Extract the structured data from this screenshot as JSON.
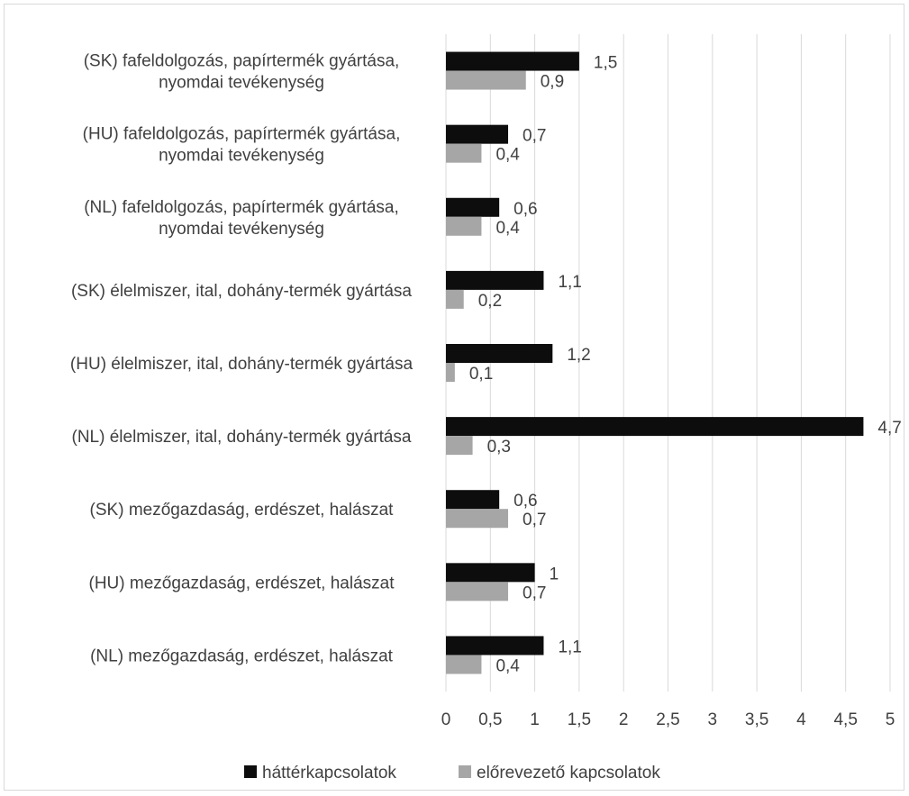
{
  "chart_data": {
    "type": "bar",
    "orientation": "horizontal",
    "title": "",
    "xlabel": "",
    "ylabel": "",
    "categories": [
      "(SK) fafeldolgozás, papírtermék gyártása, nyomdai tevékenység",
      "(HU) fafeldolgozás, papírtermék gyártása, nyomdai tevékenység",
      "(NL) fafeldolgozás, papírtermék gyártása, nyomdai tevékenység",
      "(SK) élelmiszer, ital, dohány-termék gyártása",
      "(HU) élelmiszer, ital, dohány-termék gyártása",
      "(NL) élelmiszer, ital, dohány-termék gyártása",
      "(SK) mezőgazdaság, erdészet, halászat",
      "(HU) mezőgazdaság, erdészet, halászat",
      "(NL) mezőgazdaság, erdészet, halászat"
    ],
    "category_lines": [
      [
        "(SK) fafeldolgozás, papírtermék gyártása,",
        "nyomdai tevékenység"
      ],
      [
        "(HU) fafeldolgozás, papírtermék gyártása,",
        "nyomdai tevékenység"
      ],
      [
        "(NL) fafeldolgozás, papírtermék gyártása,",
        "nyomdai tevékenység"
      ],
      [
        "(SK) élelmiszer, ital, dohány-termék gyártása"
      ],
      [
        "(HU) élelmiszer, ital, dohány-termék gyártása"
      ],
      [
        "(NL) élelmiszer, ital, dohány-termék gyártása"
      ],
      [
        "(SK) mezőgazdaság, erdészet, halászat"
      ],
      [
        "(HU) mezőgazdaság, erdészet, halászat"
      ],
      [
        "(NL) mezőgazdaság, erdészet, halászat"
      ]
    ],
    "series": [
      {
        "name": "háttérkapcsolatok",
        "color": "#0d0d0d",
        "values": [
          1.5,
          0.7,
          0.6,
          1.1,
          1.2,
          4.7,
          0.6,
          1,
          1.1
        ],
        "labels": [
          "1,5",
          "0,7",
          "0,6",
          "1,1",
          "1,2",
          "4,7",
          "0,6",
          "1",
          "1,1"
        ]
      },
      {
        "name": "előrevezető kapcsolatok",
        "color": "#a6a6a6",
        "values": [
          0.9,
          0.4,
          0.4,
          0.2,
          0.1,
          0.3,
          0.7,
          0.7,
          0.4
        ],
        "labels": [
          "0,9",
          "0,4",
          "0,4",
          "0,2",
          "0,1",
          "0,3",
          "0,7",
          "0,7",
          "0,4"
        ]
      }
    ],
    "xlim": [
      0,
      5
    ],
    "xticks": [
      0,
      0.5,
      1,
      1.5,
      2,
      2.5,
      3,
      3.5,
      4,
      4.5,
      5
    ],
    "xtick_labels": [
      "0",
      "0,5",
      "1",
      "1,5",
      "2",
      "2,5",
      "3",
      "3,5",
      "4",
      "4,5",
      "5"
    ],
    "grid": "vertical",
    "legend_position": "bottom"
  }
}
